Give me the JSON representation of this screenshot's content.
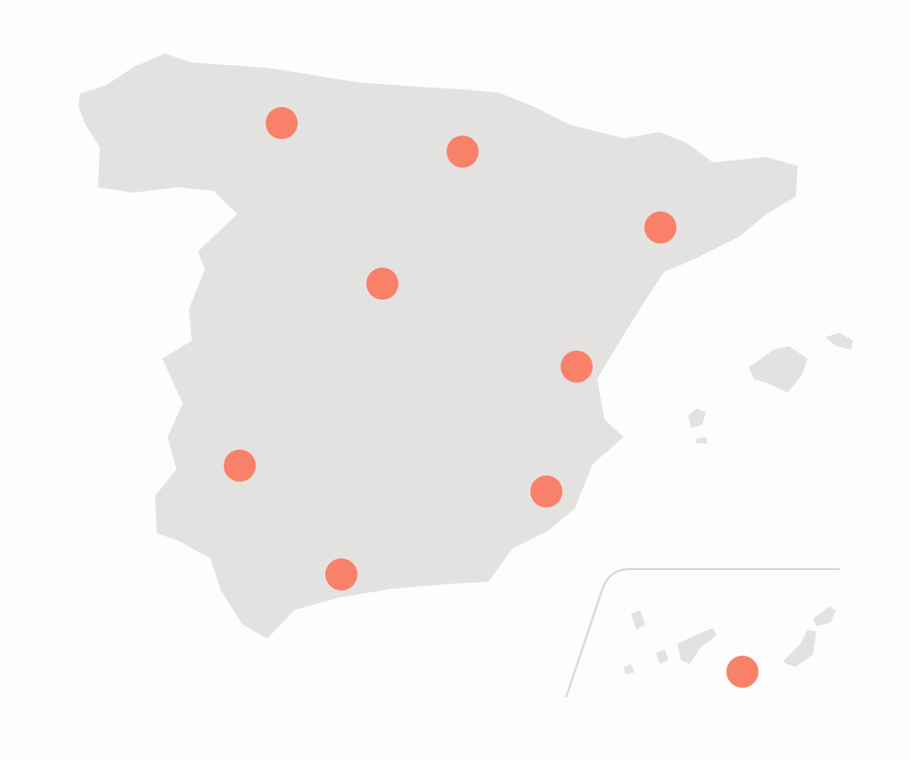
{
  "map": {
    "colors": {
      "background": "#fdfdfd",
      "land": "#e4e2e1",
      "marker": "#f98069",
      "inset_border": "#d6d4d3"
    },
    "marker_count": 9,
    "has_canary_inset": true
  }
}
